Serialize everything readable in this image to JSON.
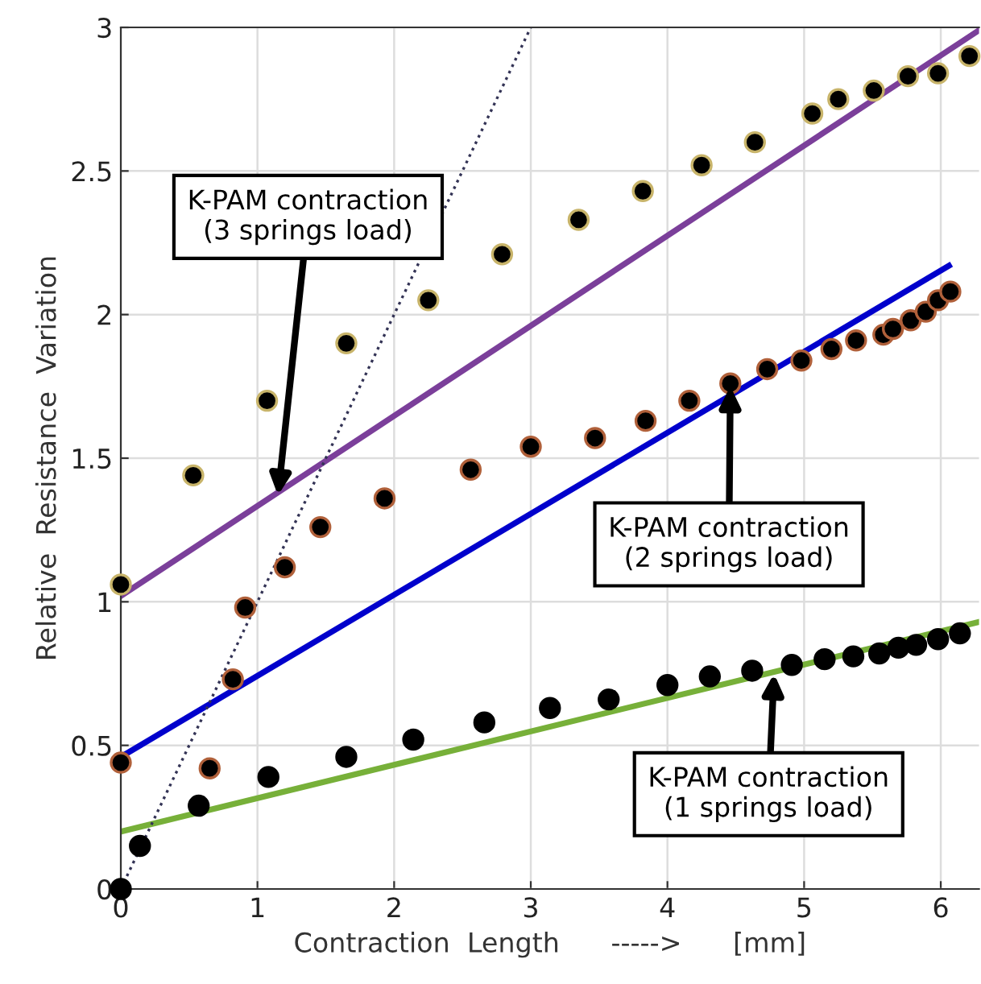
{
  "chart_data": {
    "type": "scatter",
    "xlabel": "Contraction  Length      ----->      [mm]",
    "ylabel": "Relative  Resistance  Variation",
    "xlim": [
      0,
      6.28
    ],
    "ylim": [
      0,
      3
    ],
    "xticks": [
      0,
      1,
      2,
      3,
      4,
      5,
      6
    ],
    "yticks": [
      0,
      0.5,
      1,
      1.5,
      2,
      2.5,
      3
    ],
    "grid": true,
    "marker": "circle",
    "legend": false,
    "series": [
      {
        "color": "#000000",
        "x": [
          0,
          0.53,
          1.07,
          1.65,
          2.25,
          2.79,
          3.35,
          3.82,
          4.25,
          4.64,
          5.06,
          5.25,
          5.51,
          5.76,
          5.98,
          6.21
        ],
        "values": [
          1.06,
          1.44,
          1.7,
          1.9,
          2.05,
          2.21,
          2.33,
          2.43,
          2.52,
          2.6,
          2.7,
          2.75,
          2.78,
          2.83,
          2.84,
          2.9
        ]
      },
      {
        "color": "#000000",
        "x": [
          0,
          0.65,
          0.82,
          0.91,
          1.2,
          1.46,
          1.93,
          2.56,
          3.0,
          3.47,
          3.84,
          4.16,
          4.46,
          4.73,
          4.98,
          5.2,
          5.38,
          5.58,
          5.65,
          5.78,
          5.89,
          5.98,
          6.07
        ],
        "values": [
          0.44,
          0.42,
          0.73,
          0.98,
          1.12,
          1.26,
          1.36,
          1.46,
          1.54,
          1.57,
          1.63,
          1.7,
          1.76,
          1.81,
          1.84,
          1.88,
          1.91,
          1.93,
          1.95,
          1.98,
          2.01,
          2.05,
          2.08
        ]
      },
      {
        "color": "#000000",
        "x": [
          0,
          0.14,
          0.57,
          1.08,
          1.65,
          2.14,
          2.66,
          3.14,
          3.57,
          4.0,
          4.31,
          4.62,
          4.91,
          5.15,
          5.36,
          5.55,
          5.69,
          5.82,
          5.98,
          6.14
        ],
        "values": [
          0,
          0.15,
          0.29,
          0.39,
          0.46,
          0.52,
          0.58,
          0.63,
          0.66,
          0.71,
          0.74,
          0.76,
          0.78,
          0.8,
          0.81,
          0.82,
          0.84,
          0.85,
          0.87,
          0.89
        ]
      },
      {
        "type": "line",
        "color": "#7b3f9a",
        "line_style": "solid",
        "marker": "none",
        "x": [
          0,
          6.28
        ],
        "values": [
          1.02,
          2.99
        ]
      },
      {
        "type": "line",
        "color": "#0000cc",
        "line_style": "solid",
        "marker": "none",
        "x": [
          0,
          6.06
        ],
        "values": [
          0.46,
          2.17
        ]
      },
      {
        "type": "line",
        "color": "#77b039",
        "line_style": "solid",
        "marker": "none",
        "x": [
          0,
          6.28
        ],
        "values": [
          0.2,
          0.93
        ]
      },
      {
        "type": "line",
        "color": "#333355",
        "line_style": "dotted",
        "marker": "none",
        "x": [
          0,
          3.0
        ],
        "values": [
          0,
          3.0
        ]
      }
    ],
    "annotations": [
      {
        "text": "K-PAM contraction\n(3 springs load)",
        "x": 1.15,
        "y": 1.37
      },
      {
        "text": "K-PAM contraction\n(2 springs load)",
        "x": 4.46,
        "y": 1.75
      },
      {
        "text": "K-PAM contraction\n(1 springs load)",
        "x": 4.78,
        "y": 0.75
      }
    ]
  }
}
